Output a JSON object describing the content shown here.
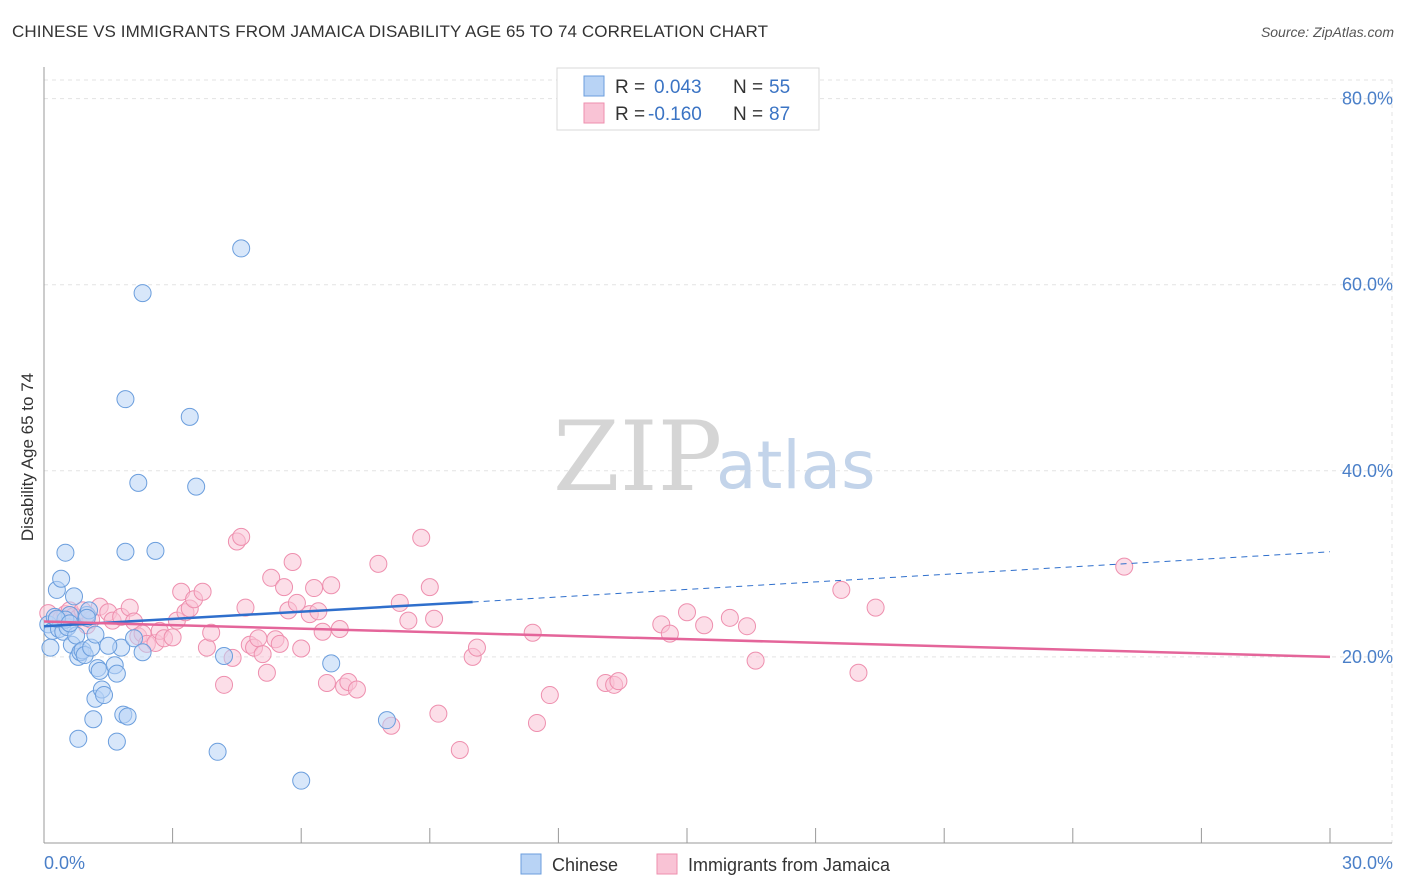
{
  "title": "CHINESE VS IMMIGRANTS FROM JAMAICA DISABILITY AGE 65 TO 74 CORRELATION CHART",
  "source": "Source: ZipAtlas.com",
  "watermark": {
    "zip": "ZIP",
    "atlas": "atlas"
  },
  "colors": {
    "chinese_fill": "#b8d3f5",
    "chinese_stroke": "#6b9edd",
    "chinese_line": "#2f6fcc",
    "jamaica_fill": "#f9c3d5",
    "jamaica_stroke": "#ee8fae",
    "jamaica_line": "#e4659a",
    "axis_label": "#4a7fc8"
  },
  "legend": {
    "rows": [
      {
        "r_label": "R =",
        "r_value": "0.043",
        "n_label": "N =",
        "n_value": "55"
      },
      {
        "r_label": "R =",
        "r_value": "-0.160",
        "n_label": "N =",
        "n_value": "87"
      }
    ]
  },
  "bottom_legend": {
    "chinese": "Chinese",
    "jamaica": "Immigrants from Jamaica"
  },
  "chart_data": {
    "type": "scatter",
    "xlabel": "",
    "ylabel": "Disability Age 65 to 74",
    "xlim": [
      0,
      30
    ],
    "ylim": [
      0,
      82
    ],
    "x_tick_labels": [
      "0.0%",
      "30.0%"
    ],
    "y_ticks": [
      20,
      40,
      60,
      80
    ],
    "y_tick_labels": [
      "20.0%",
      "40.0%",
      "60.0%",
      "80.0%"
    ],
    "grid": true,
    "series": [
      {
        "name": "Chinese",
        "trend": {
          "x0": 0,
          "y0": 23.3,
          "x1": 10,
          "y1": 25.9,
          "dashed_to_x": 30,
          "dashed_to_y": 31.3
        },
        "points": [
          [
            0.1,
            23.5
          ],
          [
            0.15,
            21.0
          ],
          [
            0.2,
            22.8
          ],
          [
            0.25,
            24.3
          ],
          [
            0.3,
            27.2
          ],
          [
            0.35,
            23.0
          ],
          [
            0.4,
            28.4
          ],
          [
            0.45,
            22.7
          ],
          [
            0.5,
            31.2
          ],
          [
            0.55,
            23.2
          ],
          [
            0.6,
            24.5
          ],
          [
            0.65,
            21.3
          ],
          [
            0.7,
            26.5
          ],
          [
            0.75,
            22.3
          ],
          [
            0.8,
            11.2
          ],
          [
            0.8,
            20.0
          ],
          [
            0.85,
            20.5
          ],
          [
            0.9,
            20.7
          ],
          [
            0.95,
            20.2
          ],
          [
            1.0,
            24.5
          ],
          [
            1.05,
            25.0
          ],
          [
            1.1,
            21.0
          ],
          [
            1.15,
            13.3
          ],
          [
            1.2,
            22.4
          ],
          [
            1.2,
            15.5
          ],
          [
            1.25,
            18.8
          ],
          [
            1.3,
            18.5
          ],
          [
            1.35,
            16.5
          ],
          [
            1.4,
            15.9
          ],
          [
            1.65,
            19.1
          ],
          [
            1.7,
            18.2
          ],
          [
            1.7,
            10.9
          ],
          [
            1.8,
            21.0
          ],
          [
            1.85,
            13.8
          ],
          [
            1.9,
            47.7
          ],
          [
            1.95,
            13.6
          ],
          [
            1.9,
            31.3
          ],
          [
            2.1,
            22.0
          ],
          [
            2.2,
            38.7
          ],
          [
            2.3,
            59.1
          ],
          [
            2.3,
            20.5
          ],
          [
            2.6,
            31.4
          ],
          [
            3.4,
            45.8
          ],
          [
            3.55,
            38.3
          ],
          [
            4.05,
            9.8
          ],
          [
            4.2,
            20.1
          ],
          [
            4.6,
            63.9
          ],
          [
            6.0,
            6.7
          ],
          [
            6.7,
            19.3
          ],
          [
            8.0,
            13.2
          ],
          [
            0.5,
            24.0
          ],
          [
            1.0,
            24.2
          ],
          [
            0.3,
            24.1
          ],
          [
            1.5,
            21.2
          ],
          [
            0.6,
            23.6
          ]
        ]
      },
      {
        "name": "Immigrants from Jamaica",
        "trend": {
          "x0": 0,
          "y0": 23.8,
          "x1": 30,
          "y1": 20.0
        },
        "points": [
          [
            0.1,
            24.7
          ],
          [
            0.3,
            24.0
          ],
          [
            0.4,
            24.1
          ],
          [
            0.5,
            24.6
          ],
          [
            0.6,
            25.0
          ],
          [
            0.7,
            24.4
          ],
          [
            0.8,
            24.2
          ],
          [
            0.9,
            25.0
          ],
          [
            1.0,
            23.4
          ],
          [
            1.1,
            24.0
          ],
          [
            1.3,
            25.4
          ],
          [
            1.5,
            24.8
          ],
          [
            1.6,
            23.9
          ],
          [
            1.8,
            24.3
          ],
          [
            2.0,
            25.3
          ],
          [
            2.1,
            23.8
          ],
          [
            2.2,
            22.2
          ],
          [
            2.3,
            22.5
          ],
          [
            2.4,
            21.4
          ],
          [
            2.6,
            21.5
          ],
          [
            2.7,
            22.8
          ],
          [
            2.8,
            22.0
          ],
          [
            3.0,
            22.1
          ],
          [
            3.1,
            23.9
          ],
          [
            3.2,
            27.0
          ],
          [
            3.3,
            24.8
          ],
          [
            3.4,
            25.2
          ],
          [
            3.5,
            26.2
          ],
          [
            3.7,
            27.0
          ],
          [
            3.8,
            21.0
          ],
          [
            3.9,
            22.6
          ],
          [
            4.2,
            17.0
          ],
          [
            4.4,
            19.9
          ],
          [
            4.5,
            32.4
          ],
          [
            4.6,
            32.9
          ],
          [
            4.7,
            25.3
          ],
          [
            4.8,
            21.3
          ],
          [
            4.9,
            21.0
          ],
          [
            5.0,
            22.0
          ],
          [
            5.1,
            20.3
          ],
          [
            5.2,
            18.3
          ],
          [
            5.3,
            28.5
          ],
          [
            5.4,
            21.9
          ],
          [
            5.5,
            21.4
          ],
          [
            5.6,
            27.5
          ],
          [
            5.7,
            25.0
          ],
          [
            5.8,
            30.2
          ],
          [
            5.9,
            25.8
          ],
          [
            6.0,
            20.9
          ],
          [
            6.2,
            24.6
          ],
          [
            6.3,
            27.4
          ],
          [
            6.4,
            24.9
          ],
          [
            6.5,
            22.7
          ],
          [
            6.6,
            17.2
          ],
          [
            6.7,
            27.7
          ],
          [
            6.9,
            23.0
          ],
          [
            7.0,
            16.8
          ],
          [
            7.1,
            17.3
          ],
          [
            7.3,
            16.5
          ],
          [
            7.8,
            30.0
          ],
          [
            8.1,
            12.6
          ],
          [
            8.3,
            25.8
          ],
          [
            8.5,
            23.9
          ],
          [
            8.8,
            32.8
          ],
          [
            9.0,
            27.5
          ],
          [
            9.1,
            24.1
          ],
          [
            9.2,
            13.9
          ],
          [
            9.7,
            10.0
          ],
          [
            10.0,
            20.0
          ],
          [
            10.1,
            21.0
          ],
          [
            11.4,
            22.6
          ],
          [
            11.5,
            12.9
          ],
          [
            11.8,
            15.9
          ],
          [
            13.1,
            17.2
          ],
          [
            13.3,
            17.0
          ],
          [
            13.4,
            17.4
          ],
          [
            14.4,
            23.5
          ],
          [
            14.6,
            22.5
          ],
          [
            15.0,
            24.8
          ],
          [
            15.4,
            23.4
          ],
          [
            16.0,
            24.2
          ],
          [
            16.4,
            23.3
          ],
          [
            16.6,
            19.6
          ],
          [
            18.6,
            27.2
          ],
          [
            19.0,
            18.3
          ],
          [
            19.4,
            25.3
          ],
          [
            25.2,
            29.7
          ]
        ]
      }
    ]
  }
}
